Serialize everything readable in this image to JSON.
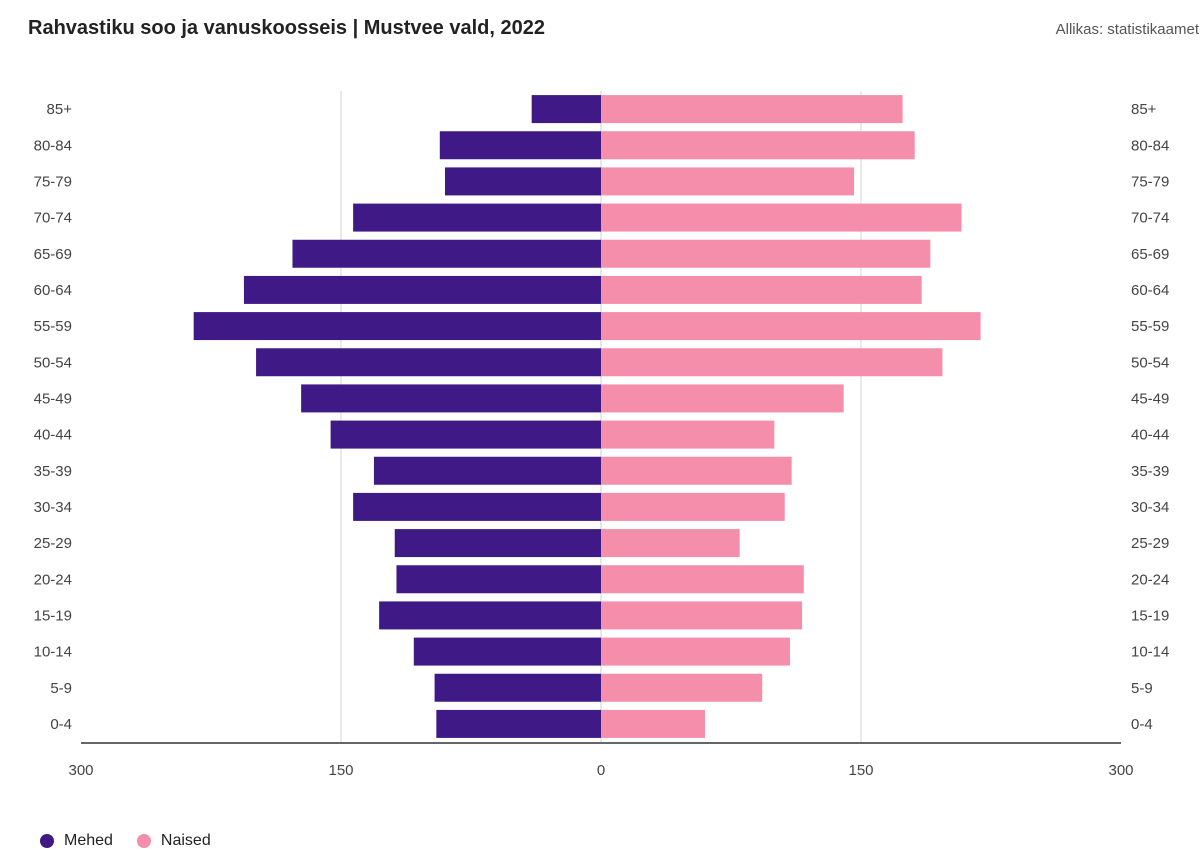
{
  "header": {
    "title": "Rahvastiku soo ja vanuskoosseis | Mustvee vald, 2022",
    "source": "Allikas: statistikaamet"
  },
  "legend": [
    {
      "label": "Mehed",
      "color": "#3f1a86"
    },
    {
      "label": "Naised",
      "color": "#f48eab"
    }
  ],
  "chart_data": {
    "type": "bar",
    "orientation": "horizontal-butterfly",
    "categories": [
      "85+",
      "80-84",
      "75-79",
      "70-74",
      "65-69",
      "60-64",
      "55-59",
      "50-54",
      "45-49",
      "40-44",
      "35-39",
      "30-34",
      "25-29",
      "20-24",
      "15-19",
      "10-14",
      "5-9",
      "0-4"
    ],
    "series": [
      {
        "name": "Mehed",
        "color": "#3f1a86",
        "values": [
          40,
          93,
          90,
          143,
          178,
          206,
          235,
          199,
          173,
          156,
          131,
          143,
          119,
          118,
          128,
          108,
          96,
          95
        ]
      },
      {
        "name": "Naised",
        "color": "#f48eab",
        "values": [
          174,
          181,
          146,
          208,
          190,
          185,
          219,
          197,
          140,
          100,
          110,
          106,
          80,
          117,
          116,
          109,
          93,
          60
        ]
      }
    ],
    "xlim": [
      -300,
      300
    ],
    "x_ticks": [
      {
        "value": -300,
        "label": "300"
      },
      {
        "value": -150,
        "label": "150"
      },
      {
        "value": 0,
        "label": "0"
      },
      {
        "value": 150,
        "label": "150"
      },
      {
        "value": 300,
        "label": "300"
      }
    ],
    "grid": true,
    "legend_position": "bottom-left"
  }
}
